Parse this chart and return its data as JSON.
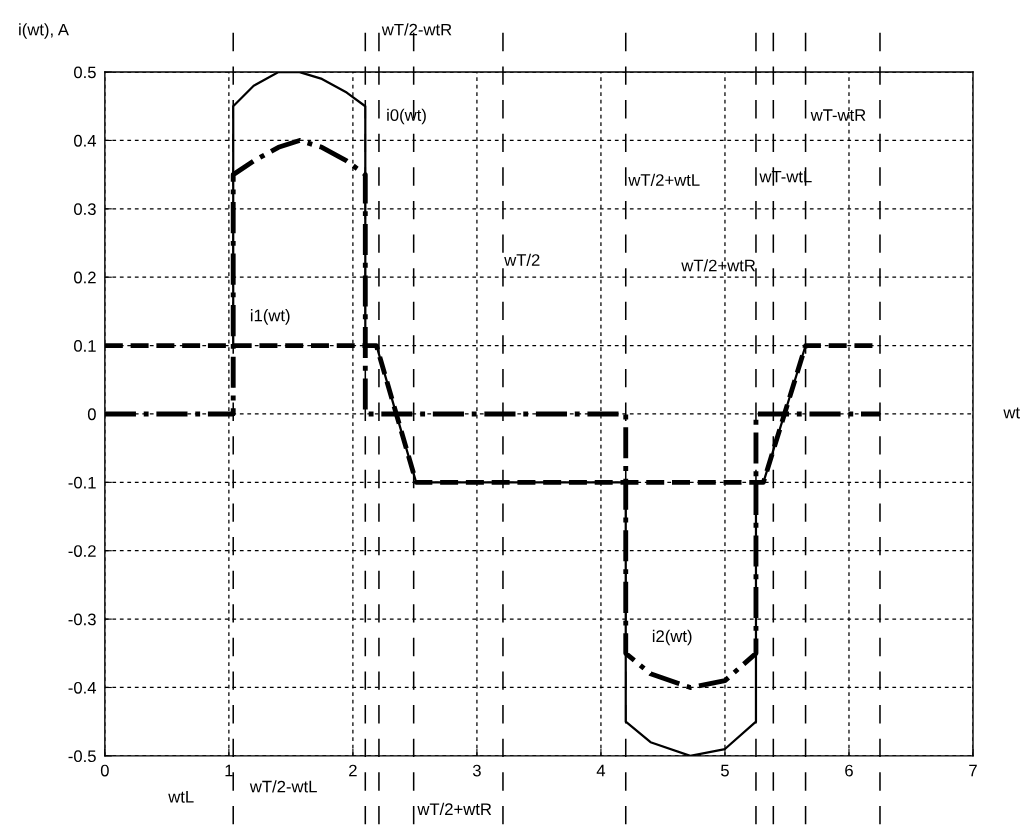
{
  "chart_data": {
    "type": "line",
    "xlabel": "wt",
    "ylabel": "i(wt), A",
    "xlim": [
      0,
      7
    ],
    "ylim": [
      -0.5,
      0.5
    ],
    "xticks": [
      0,
      1,
      2,
      3,
      4,
      5,
      6,
      7
    ],
    "yticks": [
      -0.5,
      -0.4,
      -0.3,
      -0.2,
      -0.1,
      0,
      0.1,
      0.2,
      0.3,
      0.4,
      0.5
    ],
    "grid": true,
    "marker": "none",
    "series": [
      {
        "color": "#000000",
        "line_style": "solid",
        "x": [
          1.035,
          1.035,
          1.2,
          1.4,
          1.57,
          1.75,
          1.95,
          2.1,
          2.1,
          2.19,
          2.51,
          4.2,
          4.2,
          4.4,
          4.72,
          5.0,
          5.25,
          5.25,
          5.31,
          5.65
        ],
        "values": [
          0.1,
          0.45,
          0.48,
          0.5,
          0.5,
          0.49,
          0.47,
          0.45,
          0.1,
          0.1,
          -0.1,
          -0.1,
          -0.45,
          -0.48,
          -0.5,
          -0.49,
          -0.45,
          -0.1,
          -0.1,
          0.1
        ]
      },
      {
        "color": "#000000",
        "line_style": "dashed",
        "x": [
          0,
          2.19,
          2.51,
          5.31,
          5.65,
          6.25
        ],
        "values": [
          0.1,
          0.1,
          -0.1,
          -0.1,
          0.1,
          0.1
        ]
      },
      {
        "color": "#000000",
        "line_style": "dashdot",
        "x": [
          0,
          1.035,
          1.035,
          1.2,
          1.4,
          1.57,
          1.75,
          1.95,
          2.1,
          2.1,
          4.2,
          4.2,
          4.4,
          4.72,
          5.0,
          5.25,
          5.25,
          6.25
        ],
        "values": [
          0,
          0,
          0.35,
          0.37,
          0.39,
          0.4,
          0.39,
          0.37,
          0.35,
          0,
          0,
          -0.35,
          -0.38,
          -0.4,
          -0.39,
          -0.35,
          0,
          0
        ]
      }
    ],
    "ref_lines": [
      {
        "axis": "x",
        "value": 1.035,
        "color": "#000000",
        "line_style": "dashed"
      },
      {
        "axis": "x",
        "value": 2.1,
        "color": "#000000",
        "line_style": "dashed"
      },
      {
        "axis": "x",
        "value": 2.21,
        "color": "#000000",
        "line_style": "dashed"
      },
      {
        "axis": "x",
        "value": 2.49,
        "color": "#000000",
        "line_style": "dashed"
      },
      {
        "axis": "x",
        "value": 3.21,
        "color": "#000000",
        "line_style": "dashed"
      },
      {
        "axis": "x",
        "value": 4.2,
        "color": "#000000",
        "line_style": "dashed"
      },
      {
        "axis": "x",
        "value": 5.25,
        "color": "#000000",
        "line_style": "dashed"
      },
      {
        "axis": "x",
        "value": 5.39,
        "color": "#000000",
        "line_style": "dashed"
      },
      {
        "axis": "x",
        "value": 5.65,
        "color": "#000000",
        "line_style": "dashed"
      },
      {
        "axis": "x",
        "value": 6.25,
        "color": "#000000",
        "line_style": "dashed"
      }
    ],
    "annotations": [
      "wT/2-wtR",
      "i0(wt)",
      "i1(wt)",
      "wT/2",
      "wT/2+wtL",
      "wT-wtL",
      "wT-wtR",
      "wT/2+wtR",
      "i2(wt)",
      "wtL",
      "wT/2-wtL",
      "wT/2+wtR"
    ]
  }
}
